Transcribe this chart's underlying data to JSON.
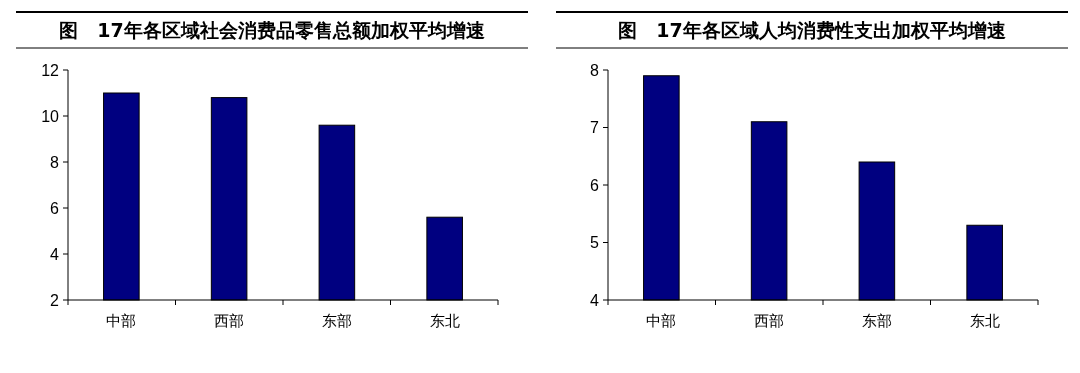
{
  "chart_data": [
    {
      "type": "bar",
      "title": "图　17年各区域社会消费品零售总额加权平均增速",
      "categories": [
        "中部",
        "西部",
        "东部",
        "东北"
      ],
      "values": [
        11.0,
        10.8,
        9.6,
        5.6
      ],
      "color": "#000080",
      "ylim": [
        2,
        12
      ],
      "yticks": [
        2,
        4,
        6,
        8,
        10,
        12
      ]
    },
    {
      "type": "bar",
      "title": "图　17年各区域人均消费性支出加权平均增速",
      "categories": [
        "中部",
        "西部",
        "东部",
        "东北"
      ],
      "values": [
        7.9,
        7.1,
        6.4,
        5.3
      ],
      "color": "#000080",
      "ylim": [
        4,
        8
      ],
      "yticks": [
        4,
        5,
        6,
        7,
        8
      ]
    }
  ]
}
